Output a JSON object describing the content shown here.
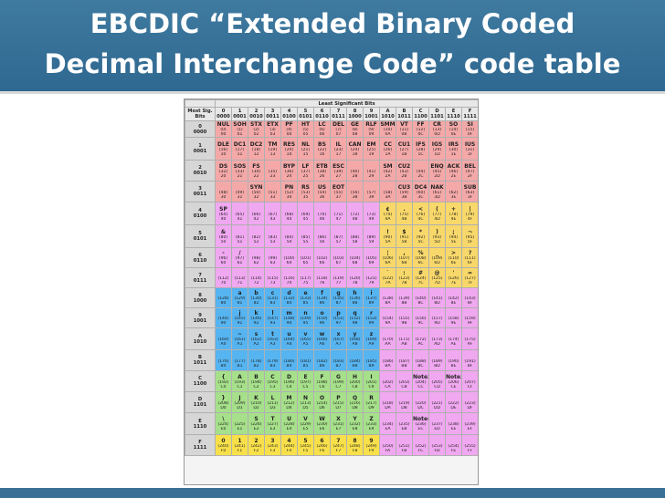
{
  "title": {
    "line1": "EBCDIC “Extended Binary Coded",
    "line2": "Decimal Interchange Code” code table"
  },
  "colors": {
    "banner": "#3a7aa3",
    "control": "#f4a8a8",
    "alpha": "#f0a8f0",
    "punct": "#f8d86a",
    "lower": "#56b4f0",
    "upper": "#a6e08a",
    "digit": "#f8e04a",
    "unassigned": "#e8e8e8"
  },
  "table": {
    "lsb_title": "Least Significant Bits",
    "corner_label": "Most Sig. Bits",
    "columns": [
      {
        "hex": "0",
        "bits": "0000"
      },
      {
        "hex": "1",
        "bits": "0001"
      },
      {
        "hex": "2",
        "bits": "0010"
      },
      {
        "hex": "3",
        "bits": "0011"
      },
      {
        "hex": "4",
        "bits": "0100"
      },
      {
        "hex": "5",
        "bits": "0101"
      },
      {
        "hex": "6",
        "bits": "0110"
      },
      {
        "hex": "7",
        "bits": "0111"
      },
      {
        "hex": "8",
        "bits": "1000"
      },
      {
        "hex": "9",
        "bits": "1001"
      },
      {
        "hex": "A",
        "bits": "1010"
      },
      {
        "hex": "B",
        "bits": "1011"
      },
      {
        "hex": "C",
        "bits": "1100"
      },
      {
        "hex": "D",
        "bits": "1101"
      },
      {
        "hex": "E",
        "bits": "1110"
      },
      {
        "hex": "F",
        "bits": "1111"
      }
    ],
    "rows": [
      {
        "hex": "0",
        "bits": "0000",
        "cat": "control",
        "syms": [
          "NUL",
          "SOH",
          "STX",
          "ETX",
          "PF",
          "HT",
          "LC",
          "DEL",
          "GE",
          "RLF",
          "SMM",
          "VT",
          "FF",
          "CR",
          "SO",
          "SI"
        ]
      },
      {
        "hex": "1",
        "bits": "0001",
        "cat": "control",
        "syms": [
          "DLE",
          "DC1",
          "DC2",
          "TM",
          "RES",
          "NL",
          "BS",
          "IL",
          "CAN",
          "EM",
          "CC",
          "CU1",
          "IFS",
          "IGS",
          "IRS",
          "IUS"
        ]
      },
      {
        "hex": "2",
        "bits": "0010",
        "cat": "control",
        "syms": [
          "DS",
          "SOS",
          "FS",
          "",
          "BYP",
          "LF",
          "ETB",
          "ESC",
          "",
          "",
          "SM",
          "CU2",
          "",
          "ENQ",
          "ACK",
          "BEL"
        ]
      },
      {
        "hex": "3",
        "bits": "0011",
        "cat": "control",
        "syms": [
          "",
          "",
          "SYN",
          "",
          "PN",
          "RS",
          "US",
          "EOT",
          "",
          "",
          "",
          "CU3",
          "DC4",
          "NAK",
          "",
          "SUB"
        ]
      },
      {
        "hex": "4",
        "bits": "0100",
        "cat": "alpha",
        "syms": [
          "SP",
          "",
          "",
          "",
          "",
          "",
          "",
          "",
          "",
          "",
          "¢",
          ".",
          "<",
          "(",
          "+",
          "|"
        ]
      },
      {
        "hex": "5",
        "bits": "0101",
        "cat": "alpha",
        "syms": [
          "&",
          "",
          "",
          "",
          "",
          "",
          "",
          "",
          "",
          "",
          "!",
          "$",
          "*",
          ")",
          ";",
          "¬"
        ]
      },
      {
        "hex": "6",
        "bits": "0110",
        "cat": "alpha",
        "syms": [
          "-",
          "/",
          "",
          "",
          "",
          "",
          "",
          "",
          "",
          "",
          "¦",
          ",",
          "%",
          "_",
          ">",
          "?"
        ]
      },
      {
        "hex": "7",
        "bits": "0111",
        "cat": "alpha",
        "syms": [
          "",
          "",
          "",
          "",
          "",
          "",
          "",
          "",
          "",
          "",
          "`",
          ":",
          "#",
          "@",
          "'",
          "="
        ]
      },
      {
        "hex": "8",
        "bits": "1000",
        "cat": "lower",
        "syms": [
          "",
          "a",
          "b",
          "c",
          "d",
          "e",
          "f",
          "g",
          "h",
          "i",
          "",
          "",
          "",
          "",
          "",
          ""
        ]
      },
      {
        "hex": "9",
        "bits": "1001",
        "cat": "lower",
        "syms": [
          "",
          "j",
          "k",
          "l",
          "m",
          "n",
          "o",
          "p",
          "q",
          "r",
          "",
          "",
          "",
          "",
          "",
          ""
        ]
      },
      {
        "hex": "A",
        "bits": "1010",
        "cat": "lower",
        "syms": [
          "",
          "~",
          "s",
          "t",
          "u",
          "v",
          "w",
          "x",
          "y",
          "z",
          "",
          "",
          "",
          "",
          "",
          ""
        ]
      },
      {
        "hex": "B",
        "bits": "1011",
        "cat": "lower",
        "syms": [
          "",
          "",
          "",
          "",
          "",
          "",
          "",
          "",
          "",
          "",
          "",
          "",
          "",
          "",
          "",
          ""
        ]
      },
      {
        "hex": "C",
        "bits": "1100",
        "cat": "upper",
        "syms": [
          "{",
          "A",
          "B",
          "C",
          "D",
          "E",
          "F",
          "G",
          "H",
          "I",
          "",
          "",
          "Note2",
          "",
          "Note3",
          ""
        ]
      },
      {
        "hex": "D",
        "bits": "1101",
        "cat": "upper",
        "syms": [
          "}",
          "J",
          "K",
          "L",
          "M",
          "N",
          "O",
          "P",
          "Q",
          "R",
          "",
          "",
          "",
          "",
          "",
          ""
        ]
      },
      {
        "hex": "E",
        "bits": "1110",
        "cat": "upper",
        "syms": [
          "\\",
          "",
          "S",
          "T",
          "U",
          "V",
          "W",
          "X",
          "Y",
          "Z",
          "",
          "",
          "Note4",
          "",
          "",
          ""
        ]
      },
      {
        "hex": "F",
        "bits": "1111",
        "cat": "upper",
        "syms": [
          "0",
          "1",
          "2",
          "3",
          "4",
          "5",
          "6",
          "7",
          "8",
          "9",
          "",
          "",
          "",
          "",
          "",
          ""
        ]
      }
    ]
  }
}
